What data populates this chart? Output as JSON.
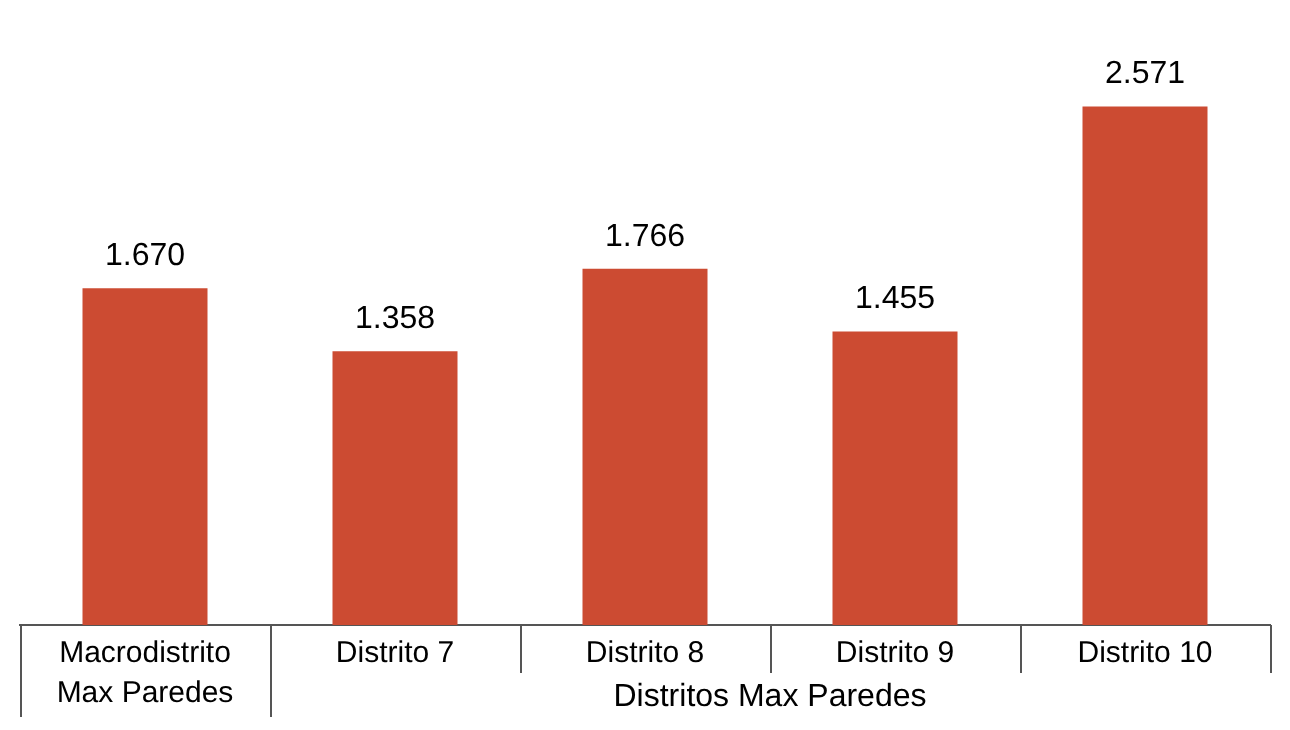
{
  "chart_data": {
    "type": "bar",
    "xlabel": "Distritos Max Paredes",
    "categories": [
      "Macrodistrito Max Paredes",
      "Distrito 7",
      "Distrito 8",
      "Distrito 9",
      "Distrito 10"
    ],
    "values": [
      1670,
      1358,
      1766,
      1455,
      2571
    ],
    "value_labels": [
      "1.670",
      "1.358",
      "1.766",
      "1.455",
      "2.571"
    ],
    "color": "#cc4b32",
    "grid": false,
    "legend": false
  }
}
